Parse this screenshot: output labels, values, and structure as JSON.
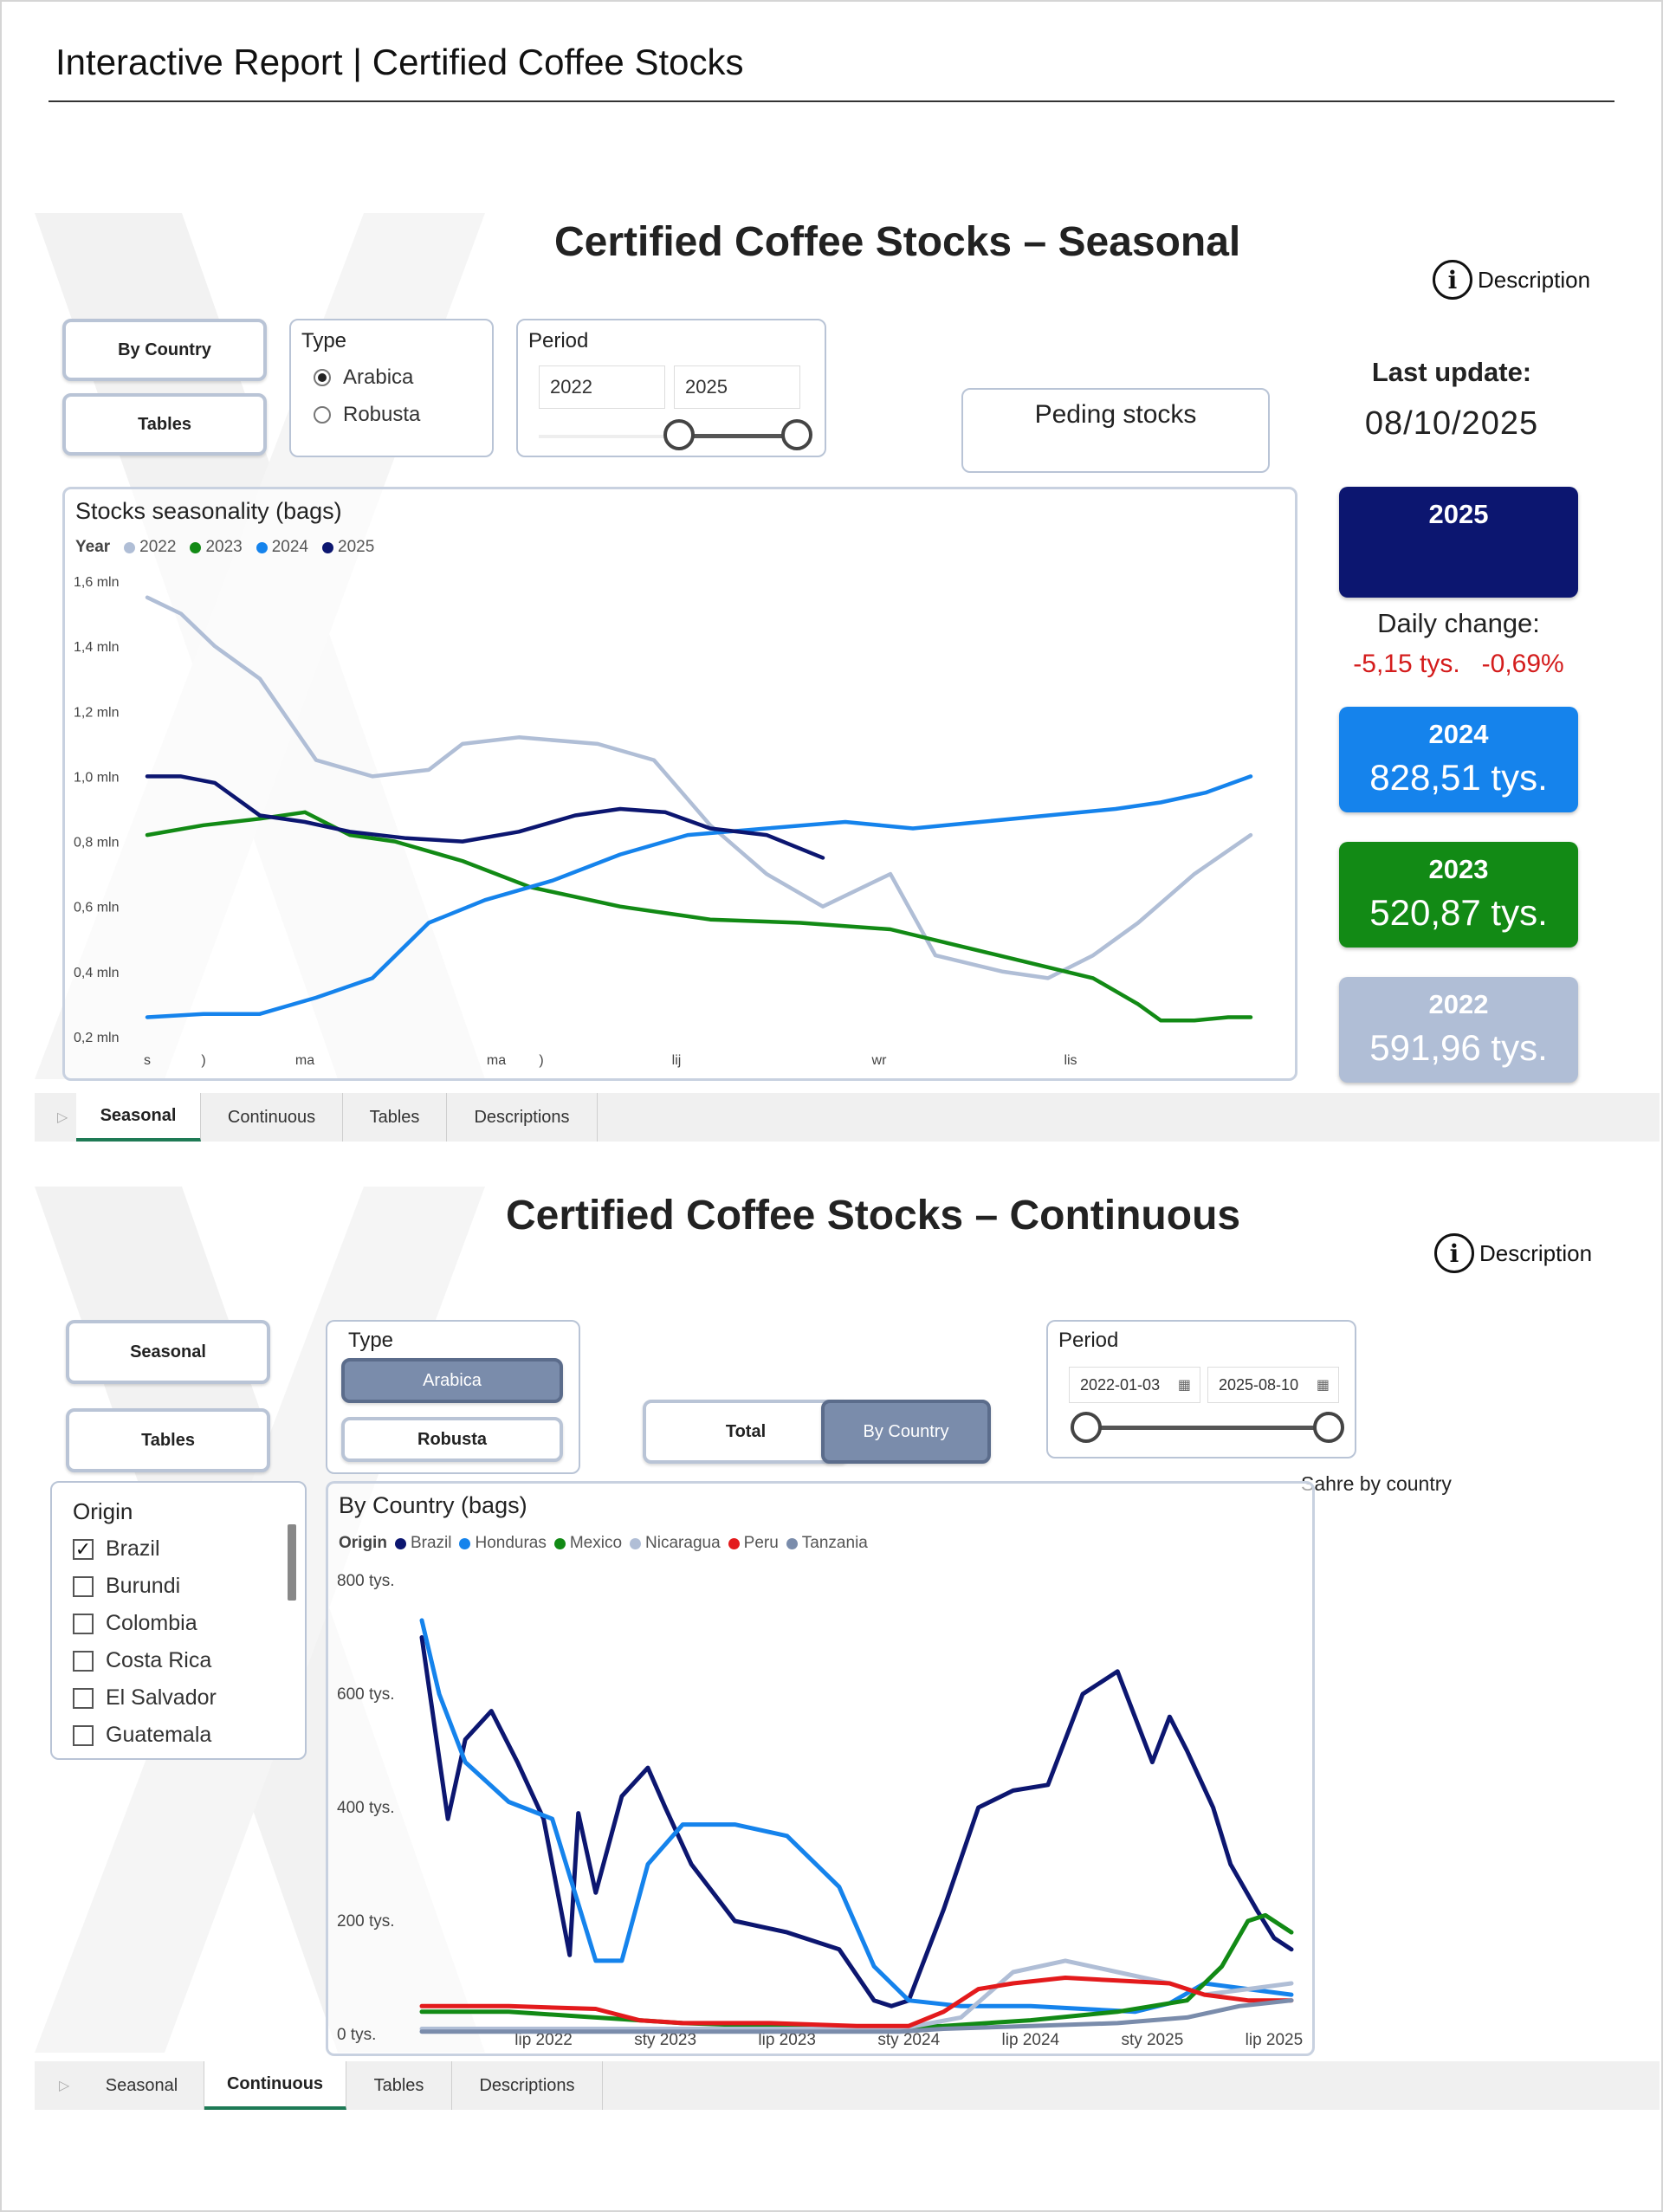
{
  "header": {
    "title": "Interactive Report | Certified Coffee Stocks"
  },
  "seasonal": {
    "title": "Certified Coffee Stocks – Seasonal",
    "description_label": "Description",
    "buttons": {
      "by_country": "By Country",
      "tables": "Tables"
    },
    "type": {
      "label": "Type",
      "options": [
        "Arabica",
        "Robusta"
      ],
      "selected": "Arabica"
    },
    "period": {
      "label": "Period",
      "from": "2022",
      "to": "2025"
    },
    "pending_label": "Peding stocks",
    "last_update_label": "Last update:",
    "last_update_value": "08/10/2025",
    "daily_change_label": "Daily change:",
    "daily_change_abs": "-5,15 tys.",
    "daily_change_pct": "-0,69%",
    "kpis": [
      {
        "year": "2025",
        "value": "",
        "color": "#0c1670"
      },
      {
        "year": "2024",
        "value": "828,51 tys.",
        "color": "#1583ec"
      },
      {
        "year": "2023",
        "value": "520,87 tys.",
        "color": "#128a15"
      },
      {
        "year": "2022",
        "value": "591,96 tys.",
        "color": "#b0bed6"
      }
    ],
    "tabs": [
      "Seasonal",
      "Continuous",
      "Tables",
      "Descriptions"
    ],
    "active_tab": "Seasonal"
  },
  "continuous": {
    "title": "Certified Coffee Stocks – Continuous",
    "description_label": "Description",
    "buttons": {
      "seasonal": "Seasonal",
      "tables": "Tables",
      "total": "Total",
      "by_country": "By Country"
    },
    "type": {
      "label": "Type",
      "options": [
        "Arabica",
        "Robusta"
      ],
      "selected": "Arabica"
    },
    "period": {
      "label": "Period",
      "from": "2022-01-03",
      "to": "2025-08-10"
    },
    "share_label": "Sahre by country",
    "origin": {
      "label": "Origin",
      "items": [
        {
          "name": "Brazil",
          "checked": true
        },
        {
          "name": "Burundi",
          "checked": false
        },
        {
          "name": "Colombia",
          "checked": false
        },
        {
          "name": "Costa Rica",
          "checked": false
        },
        {
          "name": "El Salvador",
          "checked": false
        },
        {
          "name": "Guatemala",
          "checked": false
        }
      ]
    },
    "tabs": [
      "Seasonal",
      "Continuous",
      "Tables",
      "Descriptions"
    ],
    "active_tab": "Continuous"
  },
  "chart_data": [
    {
      "type": "line",
      "title": "Stocks seasonality (bags)",
      "legend_title": "Year",
      "y_ticks": [
        "1,6 mln",
        "1,4 mln",
        "1,2 mln",
        "1,0 mln",
        "0,8 mln",
        "0,6 mln",
        "0,4 mln",
        "0,2 mln"
      ],
      "ylim": [
        0.2,
        1.6
      ],
      "x_ticks": [
        "s",
        ")",
        "ma",
        "ma",
        ")",
        "lij",
        "wr",
        "lis"
      ],
      "x_tick_pos": [
        0,
        0.05,
        0.14,
        0.31,
        0.35,
        0.47,
        0.65,
        0.82
      ],
      "legend_placement": "top-left",
      "grid": false,
      "series": [
        {
          "name": "2022",
          "color": "#b0bed6",
          "x": [
            0,
            0.03,
            0.06,
            0.1,
            0.15,
            0.2,
            0.25,
            0.28,
            0.33,
            0.4,
            0.45,
            0.5,
            0.55,
            0.6,
            0.66,
            0.7,
            0.76,
            0.8,
            0.84,
            0.88,
            0.93,
            0.98
          ],
          "values": [
            1.55,
            1.5,
            1.4,
            1.3,
            1.05,
            1.0,
            1.02,
            1.1,
            1.12,
            1.1,
            1.05,
            0.85,
            0.7,
            0.6,
            0.7,
            0.45,
            0.4,
            0.38,
            0.45,
            0.55,
            0.7,
            0.82
          ]
        },
        {
          "name": "2023",
          "color": "#128a15",
          "x": [
            0,
            0.05,
            0.1,
            0.14,
            0.18,
            0.22,
            0.28,
            0.34,
            0.42,
            0.5,
            0.58,
            0.66,
            0.72,
            0.78,
            0.84,
            0.88,
            0.9,
            0.93,
            0.96,
            0.98
          ],
          "values": [
            0.82,
            0.85,
            0.87,
            0.89,
            0.82,
            0.8,
            0.74,
            0.66,
            0.6,
            0.56,
            0.55,
            0.53,
            0.48,
            0.43,
            0.38,
            0.3,
            0.25,
            0.25,
            0.26,
            0.26
          ]
        },
        {
          "name": "2024",
          "color": "#1583ec",
          "x": [
            0,
            0.05,
            0.1,
            0.15,
            0.2,
            0.25,
            0.3,
            0.36,
            0.42,
            0.48,
            0.55,
            0.62,
            0.68,
            0.74,
            0.8,
            0.86,
            0.9,
            0.94,
            0.98
          ],
          "values": [
            0.26,
            0.27,
            0.27,
            0.32,
            0.38,
            0.55,
            0.62,
            0.68,
            0.76,
            0.82,
            0.84,
            0.86,
            0.84,
            0.86,
            0.88,
            0.9,
            0.92,
            0.95,
            1.0
          ]
        },
        {
          "name": "2025",
          "color": "#0c1670",
          "x": [
            0,
            0.03,
            0.06,
            0.1,
            0.14,
            0.18,
            0.23,
            0.28,
            0.33,
            0.38,
            0.42,
            0.46,
            0.5,
            0.55,
            0.6
          ],
          "values": [
            1.0,
            1.0,
            0.98,
            0.88,
            0.86,
            0.83,
            0.81,
            0.8,
            0.83,
            0.88,
            0.9,
            0.89,
            0.84,
            0.82,
            0.75
          ]
        }
      ]
    },
    {
      "type": "line",
      "title": "By Country (bags)",
      "legend_title": "Origin",
      "y_ticks": [
        "800 tys.",
        "600 tys.",
        "400 tys.",
        "200 tys.",
        "0 tys."
      ],
      "ylim": [
        0,
        800
      ],
      "x_ticks": [
        "lip 2022",
        "sty 2023",
        "lip 2023",
        "sty 2024",
        "lip 2024",
        "sty 2025",
        "lip 2025"
      ],
      "x_tick_pos": [
        0.14,
        0.28,
        0.42,
        0.56,
        0.7,
        0.84,
        0.98
      ],
      "legend_placement": "top-left",
      "grid": false,
      "series": [
        {
          "name": "Brazil",
          "color": "#0c1670",
          "x": [
            0,
            0.03,
            0.05,
            0.08,
            0.11,
            0.14,
            0.17,
            0.18,
            0.2,
            0.23,
            0.26,
            0.28,
            0.31,
            0.36,
            0.42,
            0.48,
            0.52,
            0.54,
            0.56,
            0.6,
            0.64,
            0.68,
            0.72,
            0.76,
            0.8,
            0.84,
            0.86,
            0.88,
            0.91,
            0.93,
            0.96,
            0.98,
            1.0
          ],
          "values": [
            700,
            380,
            520,
            570,
            480,
            380,
            140,
            390,
            250,
            420,
            470,
            400,
            300,
            200,
            180,
            150,
            60,
            50,
            60,
            220,
            400,
            430,
            440,
            600,
            640,
            480,
            560,
            500,
            400,
            300,
            220,
            170,
            150
          ]
        },
        {
          "name": "Honduras",
          "color": "#1583ec",
          "x": [
            0,
            0.02,
            0.05,
            0.1,
            0.15,
            0.2,
            0.23,
            0.26,
            0.3,
            0.36,
            0.42,
            0.48,
            0.52,
            0.56,
            0.62,
            0.7,
            0.76,
            0.82,
            0.86,
            0.9,
            0.95,
            1.0
          ],
          "values": [
            730,
            600,
            480,
            410,
            380,
            130,
            130,
            300,
            370,
            370,
            350,
            260,
            120,
            60,
            50,
            50,
            45,
            40,
            55,
            90,
            80,
            70
          ]
        },
        {
          "name": "Mexico",
          "color": "#128a15",
          "x": [
            0,
            0.1,
            0.2,
            0.3,
            0.4,
            0.5,
            0.6,
            0.7,
            0.8,
            0.88,
            0.92,
            0.95,
            0.97,
            1.0
          ],
          "values": [
            40,
            40,
            30,
            20,
            15,
            10,
            15,
            25,
            40,
            60,
            120,
            200,
            210,
            180
          ]
        },
        {
          "name": "Nicaragua",
          "color": "#b0bed6",
          "x": [
            0,
            0.3,
            0.55,
            0.62,
            0.68,
            0.74,
            0.8,
            0.86,
            0.9,
            0.95,
            1.0
          ],
          "values": [
            10,
            10,
            10,
            30,
            110,
            130,
            110,
            90,
            70,
            80,
            90
          ]
        },
        {
          "name": "Peru",
          "color": "#e31a1c",
          "x": [
            0,
            0.1,
            0.2,
            0.25,
            0.3,
            0.4,
            0.5,
            0.56,
            0.6,
            0.64,
            0.68,
            0.74,
            0.8,
            0.86,
            0.9,
            0.95,
            1.0
          ],
          "values": [
            50,
            50,
            45,
            25,
            20,
            20,
            15,
            15,
            40,
            80,
            90,
            100,
            95,
            90,
            70,
            60,
            60
          ]
        },
        {
          "name": "Tanzania",
          "color": "#7a8cab",
          "x": [
            0,
            0.2,
            0.4,
            0.55,
            0.6,
            0.7,
            0.8,
            0.88,
            0.94,
            1.0
          ],
          "values": [
            5,
            5,
            5,
            5,
            10,
            15,
            20,
            30,
            50,
            60
          ]
        }
      ]
    }
  ]
}
